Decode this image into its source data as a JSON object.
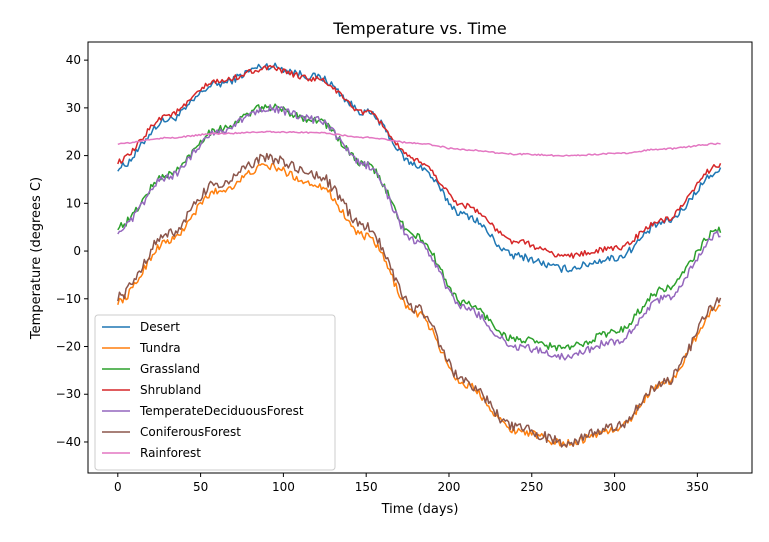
{
  "chart_data": {
    "type": "line",
    "title": "Temperature vs. Time",
    "xlabel": "Time (days)",
    "ylabel": "Temperature (degrees C)",
    "xlim": [
      -18,
      383
    ],
    "ylim": [
      -46.5,
      43.8
    ],
    "xticks": [
      0,
      50,
      100,
      150,
      200,
      250,
      300,
      350
    ],
    "yticks": [
      -40,
      -30,
      -20,
      -10,
      0,
      10,
      20,
      30,
      40
    ],
    "grid": false,
    "legend_position": "lower-left",
    "series": [
      {
        "name": "Desert",
        "color": "#1f77b4",
        "x": [
          0,
          30,
          60,
          90,
          120,
          150,
          180,
          210,
          240,
          270,
          300,
          330,
          364
        ],
        "y": [
          17.5,
          27.5,
          35,
          38.8,
          36.5,
          29,
          18,
          7.5,
          -1,
          -3.7,
          -1.5,
          6,
          16.8
        ],
        "noise": 0.8
      },
      {
        "name": "Tundra",
        "color": "#ff7f0e",
        "x": [
          0,
          30,
          60,
          90,
          120,
          150,
          180,
          210,
          240,
          270,
          300,
          330,
          364
        ],
        "y": [
          -10.5,
          2,
          12.5,
          17.8,
          14,
          3,
          -13,
          -28,
          -37.5,
          -40.3,
          -37.5,
          -27.5,
          -11.5
        ],
        "noise": 0.8
      },
      {
        "name": "Grassland",
        "color": "#2ca02c",
        "x": [
          0,
          30,
          60,
          90,
          120,
          150,
          180,
          210,
          240,
          270,
          300,
          330,
          364
        ],
        "y": [
          5.2,
          16,
          25.5,
          30.2,
          27.5,
          18,
          3,
          -11,
          -18.5,
          -20.3,
          -17,
          -8,
          4.5
        ],
        "noise": 0.8
      },
      {
        "name": "Shrubland",
        "color": "#d62728",
        "x": [
          0,
          30,
          60,
          90,
          120,
          150,
          180,
          210,
          240,
          270,
          300,
          330,
          364
        ],
        "y": [
          18.8,
          28.5,
          35.5,
          38.3,
          36,
          29,
          19,
          9.5,
          2,
          -1,
          0.5,
          6.5,
          18.2
        ],
        "noise": 0.6
      },
      {
        "name": "TemperateDeciduousForest",
        "color": "#9467bd",
        "x": [
          0,
          30,
          60,
          90,
          120,
          150,
          180,
          210,
          240,
          270,
          300,
          330,
          364
        ],
        "y": [
          4.3,
          15.5,
          25,
          30,
          27.5,
          18,
          2,
          -12,
          -20,
          -22,
          -19,
          -10,
          3.5
        ],
        "noise": 0.8
      },
      {
        "name": "ConiferousForest",
        "color": "#8c564b",
        "x": [
          0,
          30,
          60,
          90,
          120,
          150,
          180,
          210,
          240,
          270,
          300,
          330,
          364
        ],
        "y": [
          -9.5,
          3.5,
          14,
          19.5,
          16,
          5,
          -12,
          -27.5,
          -37,
          -40,
          -37,
          -27.5,
          -10.5
        ],
        "noise": 1.1
      },
      {
        "name": "Rainforest",
        "color": "#e377c2",
        "x": [
          0,
          30,
          60,
          90,
          120,
          150,
          180,
          210,
          240,
          270,
          300,
          330,
          364
        ],
        "y": [
          22.5,
          23.7,
          24.6,
          25,
          24.8,
          23.8,
          22.6,
          21.2,
          20.3,
          20,
          20.4,
          21.4,
          22.5
        ],
        "noise": 0.15
      }
    ]
  }
}
